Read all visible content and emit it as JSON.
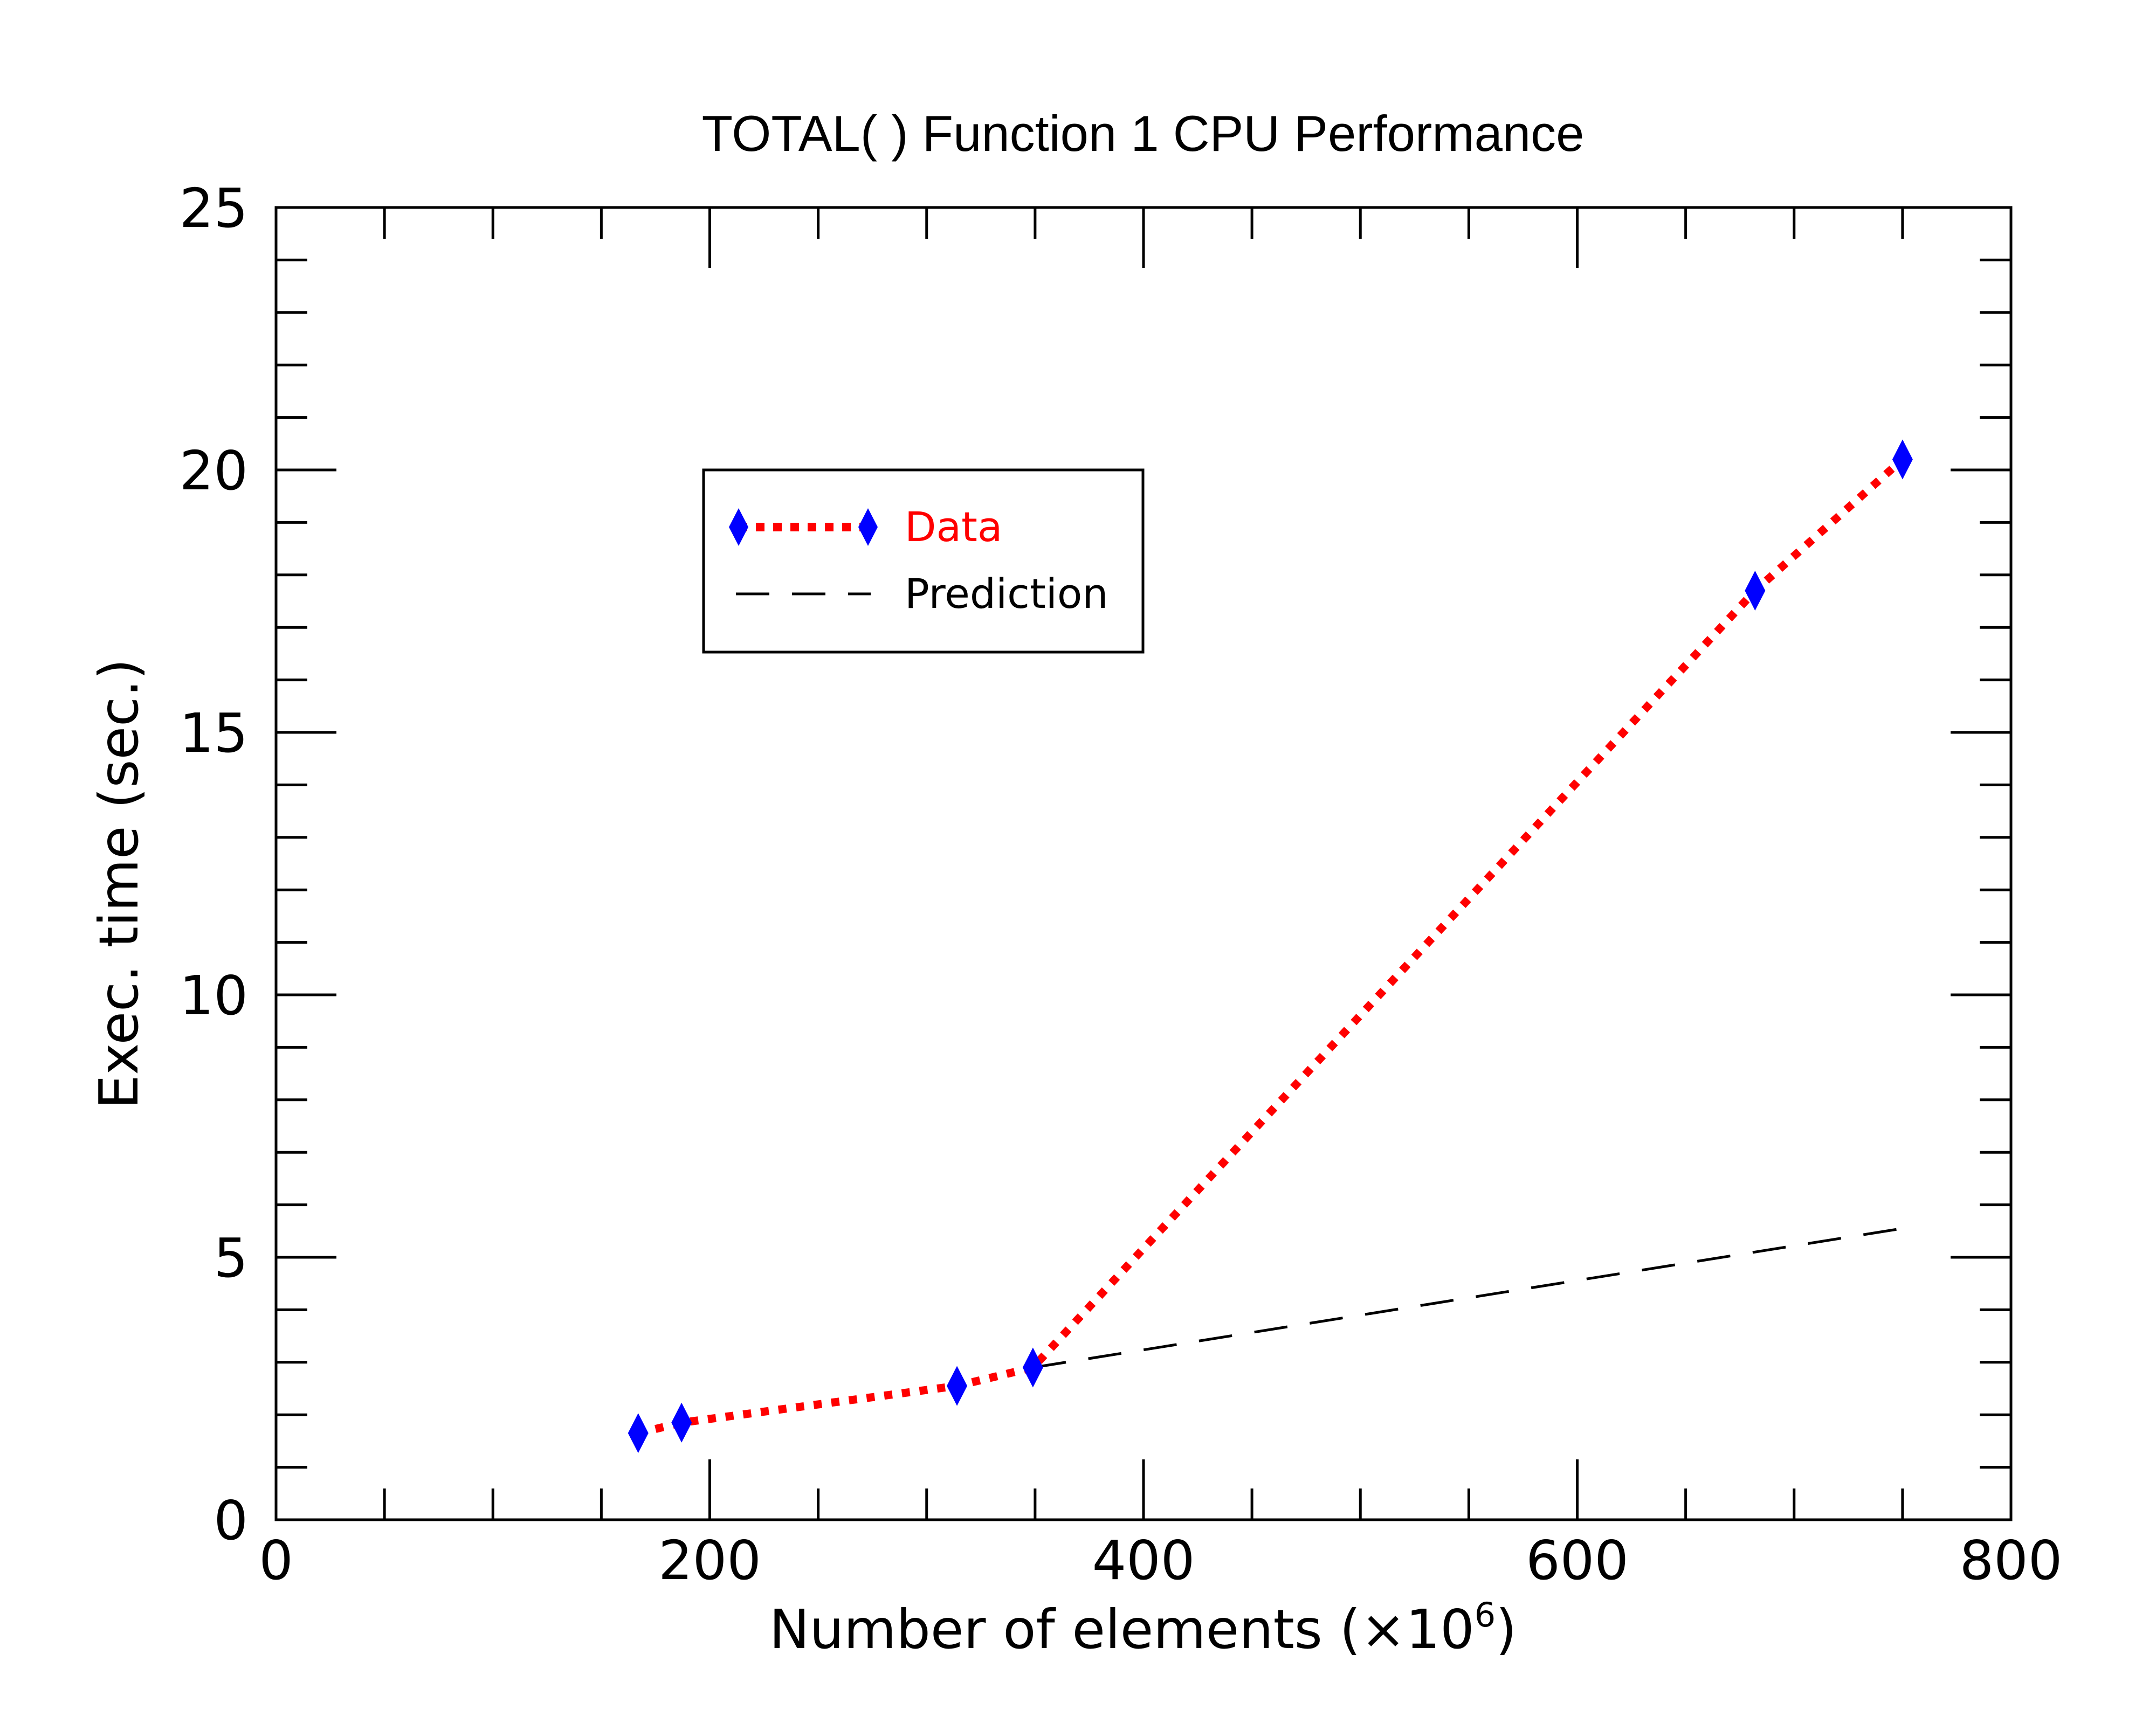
{
  "chart_data": {
    "type": "line",
    "title": "TOTAL( ) Function 1 CPU Performance",
    "xlabel": "Number of elements (×10",
    "xlabel_exponent": "6",
    "xlabel_suffix": ")",
    "ylabel": "Exec. time (sec.)",
    "xlim": [
      0,
      800
    ],
    "ylim": [
      0,
      25
    ],
    "x_ticks": [
      "0",
      "200",
      "400",
      "600",
      "800"
    ],
    "y_ticks": [
      "0",
      "5",
      "10",
      "15",
      "20",
      "25"
    ],
    "grid": false,
    "legend_position": "upper-left-center",
    "series": [
      {
        "name": "Data",
        "color": "#ff0000",
        "marker_color": "#0000ff",
        "line_style": "dotted",
        "marker": "diamond",
        "x": [
          167,
          187,
          314,
          349,
          682,
          750
        ],
        "y": [
          1.65,
          1.85,
          2.55,
          2.9,
          17.7,
          20.2
        ]
      },
      {
        "name": "Prediction",
        "color": "#000000",
        "line_style": "dashed",
        "x": [
          349,
          750
        ],
        "y": [
          2.9,
          5.55
        ]
      }
    ]
  }
}
